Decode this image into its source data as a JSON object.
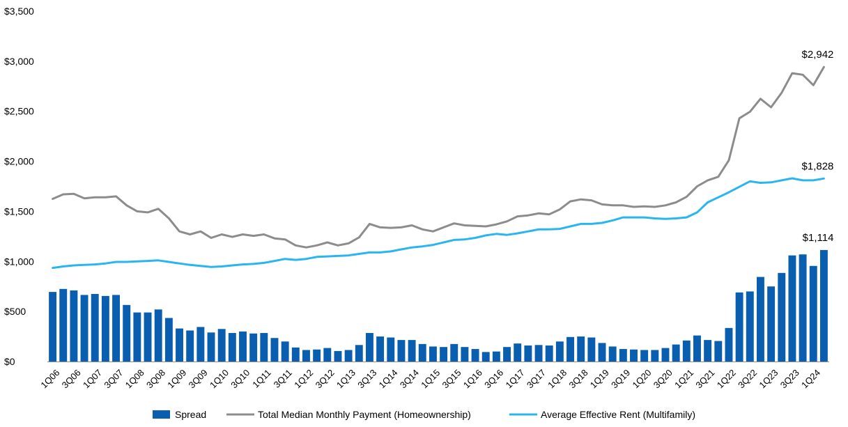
{
  "chart_data": {
    "type": "bar",
    "title": "",
    "xlabel": "",
    "ylabel": "",
    "ylim": [
      0,
      3500
    ],
    "y_ticks": [
      0,
      500,
      1000,
      1500,
      2000,
      2500,
      3000,
      3500
    ],
    "y_tick_labels": [
      "$0",
      "$500",
      "$1,000",
      "$1,500",
      "$2,000",
      "$2,500",
      "$3,000",
      "$3,500"
    ],
    "grid": false,
    "legend_position": "bottom",
    "categories": [
      "1Q06",
      "2Q06",
      "3Q06",
      "4Q06",
      "1Q07",
      "2Q07",
      "3Q07",
      "4Q07",
      "1Q08",
      "2Q08",
      "3Q08",
      "4Q08",
      "1Q09",
      "2Q09",
      "3Q09",
      "4Q09",
      "1Q10",
      "2Q10",
      "3Q10",
      "4Q10",
      "1Q11",
      "2Q11",
      "3Q11",
      "4Q11",
      "1Q12",
      "2Q12",
      "3Q12",
      "4Q12",
      "1Q13",
      "2Q13",
      "3Q13",
      "4Q13",
      "1Q14",
      "2Q14",
      "3Q14",
      "4Q14",
      "1Q15",
      "2Q15",
      "3Q15",
      "4Q15",
      "1Q16",
      "2Q16",
      "3Q16",
      "4Q16",
      "1Q17",
      "2Q17",
      "3Q17",
      "4Q17",
      "1Q18",
      "2Q18",
      "3Q18",
      "4Q18",
      "1Q19",
      "2Q19",
      "3Q19",
      "4Q19",
      "1Q20",
      "2Q20",
      "3Q20",
      "4Q20",
      "1Q21",
      "2Q21",
      "3Q21",
      "4Q21",
      "1Q22",
      "2Q22",
      "3Q22",
      "4Q22",
      "1Q23",
      "2Q23",
      "3Q23",
      "4Q23",
      "1Q24",
      "2Q24"
    ],
    "x_tick_labels": [
      "1Q06",
      "3Q06",
      "1Q07",
      "3Q07",
      "1Q08",
      "3Q08",
      "1Q09",
      "3Q09",
      "1Q10",
      "3Q10",
      "1Q11",
      "3Q11",
      "1Q12",
      "3Q12",
      "1Q13",
      "3Q13",
      "1Q14",
      "3Q14",
      "1Q15",
      "3Q15",
      "1Q16",
      "3Q16",
      "1Q17",
      "3Q17",
      "1Q18",
      "3Q18",
      "1Q19",
      "3Q19",
      "1Q20",
      "3Q20",
      "1Q21",
      "3Q21",
      "1Q22",
      "3Q22",
      "1Q23",
      "3Q23",
      "1Q24"
    ],
    "series": [
      {
        "name": "Spread",
        "kind": "bar",
        "color": "#0a5eb0",
        "values": [
          695,
          725,
          710,
          665,
          675,
          655,
          665,
          565,
          490,
          490,
          520,
          435,
          330,
          310,
          345,
          290,
          325,
          285,
          300,
          280,
          285,
          235,
          200,
          140,
          115,
          120,
          135,
          105,
          115,
          165,
          285,
          250,
          240,
          215,
          215,
          175,
          150,
          145,
          175,
          145,
          125,
          95,
          100,
          145,
          180,
          160,
          165,
          160,
          200,
          245,
          250,
          240,
          185,
          150,
          125,
          120,
          115,
          115,
          135,
          170,
          210,
          260,
          215,
          205,
          335,
          690,
          700,
          845,
          750,
          885,
          1060,
          1070,
          955,
          1114
        ]
      },
      {
        "name": "Total Median Monthly Payment (Homeownership)",
        "kind": "line",
        "color": "#8c8c8c",
        "values": [
          1625,
          1670,
          1675,
          1630,
          1640,
          1640,
          1650,
          1560,
          1500,
          1490,
          1525,
          1430,
          1300,
          1270,
          1300,
          1235,
          1270,
          1245,
          1270,
          1255,
          1270,
          1230,
          1220,
          1160,
          1140,
          1160,
          1190,
          1160,
          1180,
          1240,
          1375,
          1340,
          1335,
          1340,
          1360,
          1320,
          1300,
          1340,
          1380,
          1360,
          1355,
          1350,
          1370,
          1400,
          1450,
          1460,
          1480,
          1470,
          1520,
          1600,
          1620,
          1610,
          1570,
          1560,
          1560,
          1545,
          1550,
          1545,
          1560,
          1590,
          1645,
          1750,
          1810,
          1845,
          2010,
          2430,
          2495,
          2625,
          2540,
          2685,
          2880,
          2865,
          2760,
          2942
        ]
      },
      {
        "name": "Average Effective Rent (Multifamily)",
        "kind": "line",
        "color": "#29b5f0",
        "values": [
          935,
          950,
          960,
          965,
          970,
          980,
          995,
          995,
          1000,
          1005,
          1010,
          995,
          980,
          965,
          955,
          945,
          950,
          960,
          970,
          975,
          985,
          1005,
          1025,
          1015,
          1025,
          1045,
          1050,
          1055,
          1060,
          1075,
          1090,
          1090,
          1100,
          1120,
          1140,
          1150,
          1165,
          1190,
          1215,
          1220,
          1235,
          1260,
          1275,
          1265,
          1280,
          1300,
          1320,
          1320,
          1325,
          1350,
          1375,
          1375,
          1385,
          1410,
          1440,
          1440,
          1440,
          1430,
          1425,
          1430,
          1440,
          1490,
          1590,
          1640,
          1690,
          1745,
          1800,
          1785,
          1790,
          1810,
          1830,
          1810,
          1810,
          1828
        ]
      }
    ],
    "end_labels": [
      {
        "series": "Spread",
        "text": "$1,114"
      },
      {
        "series": "Total Median Monthly Payment (Homeownership)",
        "text": "$2,942"
      },
      {
        "series": "Average Effective Rent (Multifamily)",
        "text": "$1,828"
      }
    ]
  }
}
